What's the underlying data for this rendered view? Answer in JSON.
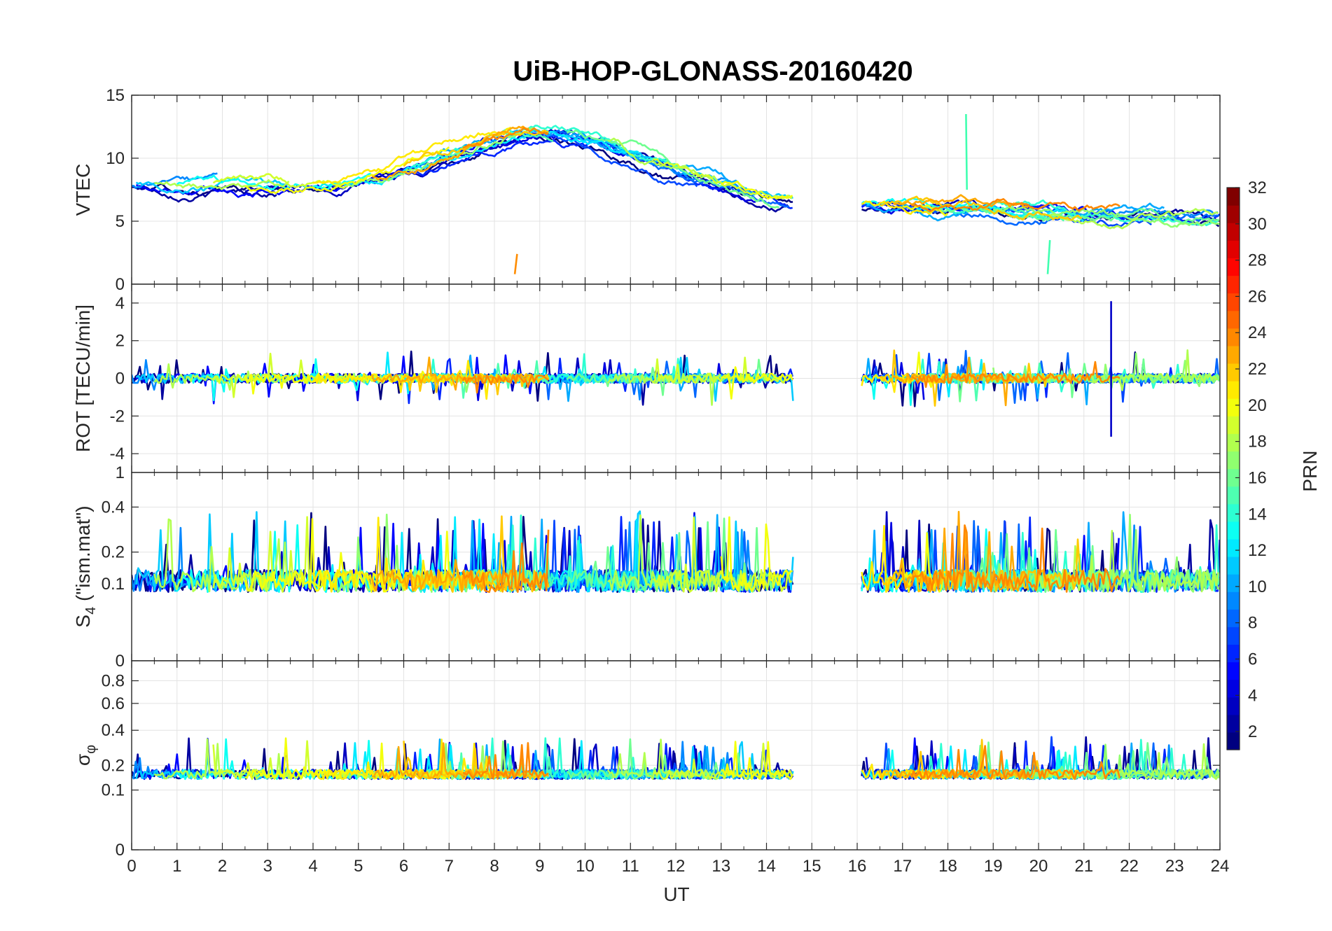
{
  "chart_data": {
    "type": "line",
    "title": "UiB-HOP-GLONASS-20160420",
    "xlabel": "UT",
    "xlim": [
      0,
      24
    ],
    "x_ticks": [
      "0",
      "1",
      "2",
      "3",
      "4",
      "5",
      "6",
      "7",
      "8",
      "9",
      "10",
      "11",
      "12",
      "13",
      "14",
      "15",
      "16",
      "17",
      "18",
      "19",
      "20",
      "21",
      "22",
      "23",
      "24"
    ],
    "grid": true,
    "data_gap": [
      14.6,
      16.1
    ],
    "panels": [
      {
        "id": "vtec",
        "ylabel": "VTEC",
        "ylim": [
          0,
          15
        ],
        "y_ticks": [
          0,
          5,
          10,
          15
        ],
        "y_tick_labels": [
          "0",
          "5",
          "10",
          "15"
        ],
        "base": 7.5,
        "base_end": 4.8,
        "peak_hour": 9.3,
        "peak": 12.5,
        "noise": 0.35,
        "jitter": 0.8,
        "annotations": [
          {
            "note": "short isolated segment near 8.5 UT",
            "x": [
              8.45,
              8.5
            ],
            "y": [
              0.8,
              2.4
            ]
          },
          {
            "note": "spike near 18.4 UT",
            "x": [
              18.4,
              18.42
            ],
            "y": [
              13.5,
              7.5
            ]
          },
          {
            "note": "drop near 20.2 UT",
            "x": [
              20.2,
              20.25
            ],
            "y": [
              0.8,
              3.5
            ]
          }
        ]
      },
      {
        "id": "rot",
        "ylabel": "ROT [TECU/min]",
        "ylim": [
          -5,
          5
        ],
        "y_ticks": [
          -4,
          -2,
          0,
          2,
          4
        ],
        "y_tick_labels": [
          "-4",
          "-2",
          "0",
          "2",
          "4"
        ],
        "base": 0.0,
        "noise": 0.25,
        "spike_amp": 1.4,
        "annotations": [
          {
            "note": "spike near 21.6 UT",
            "x": [
              21.6,
              21.6
            ],
            "y": [
              4.1,
              -3.1
            ]
          }
        ]
      },
      {
        "id": "s4",
        "ylabel": "S4 (\"ism.mat\")",
        "ylabel_main": "S",
        "ylabel_sub": "4",
        "ylabel_suffix": " (\"ism.mat\")",
        "ylim": [
          0,
          0.6
        ],
        "scale": "sqrt",
        "y_ticks": [
          0,
          0.1,
          0.2,
          0.4
        ],
        "y_tick_labels": [
          "0",
          "0.1",
          "0.2",
          "0.4"
        ],
        "top_stub_label": "1",
        "base": 0.08,
        "noise": 0.06,
        "spike_amp": 0.25
      },
      {
        "id": "sigma_phi",
        "ylabel": "σφ",
        "ylabel_main": "σ",
        "ylabel_sub": "φ",
        "ylim": [
          0,
          1
        ],
        "scale": "sqrt",
        "y_ticks": [
          0,
          0.1,
          0.2,
          0.4,
          0.6,
          0.8
        ],
        "y_tick_labels": [
          "0",
          "0.1",
          "0.2",
          "0.4",
          "0.6",
          "0.8"
        ],
        "base": 0.14,
        "noise": 0.04,
        "spike_amp": 0.18
      }
    ],
    "series": [
      {
        "prn": 1,
        "segments": [
          [
            0,
            14.6
          ],
          [
            16.1,
            24
          ]
        ]
      },
      {
        "prn": 2,
        "segments": [
          [
            0,
            3.2
          ],
          [
            10.6,
            14.5
          ],
          [
            21.0,
            24
          ]
        ]
      },
      {
        "prn": 3,
        "segments": [
          [
            2.5,
            10.8
          ],
          [
            16.2,
            19.5
          ]
        ]
      },
      {
        "prn": 4,
        "segments": [
          [
            4.4,
            13.8
          ],
          [
            16.3,
            17.5
          ]
        ]
      },
      {
        "prn": 5,
        "segments": [
          [
            0.1,
            9.2
          ],
          [
            16.1,
            21.8
          ]
        ]
      },
      {
        "prn": 6,
        "segments": [
          [
            5.8,
            14.6
          ],
          [
            19.0,
            24
          ]
        ]
      },
      {
        "prn": 7,
        "segments": [
          [
            8.6,
            12.5
          ],
          [
            16.1,
            22.5
          ]
        ]
      },
      {
        "prn": 8,
        "segments": [
          [
            9.1,
            14.5
          ],
          [
            17.0,
            24
          ]
        ]
      },
      {
        "prn": 9,
        "segments": [
          [
            0,
            1.9
          ],
          [
            10.8,
            14.0
          ],
          [
            21.3,
            24
          ]
        ]
      },
      {
        "prn": 10,
        "segments": [
          [
            6.3,
            13.5
          ],
          [
            16.2,
            22.8
          ]
        ]
      },
      {
        "prn": 11,
        "segments": [
          [
            0.1,
            3.5
          ],
          [
            9.5,
            14.6
          ]
        ]
      },
      {
        "prn": 12,
        "segments": [
          [
            3.8,
            11.2
          ],
          [
            17.3,
            21.0
          ]
        ]
      },
      {
        "prn": 13,
        "segments": [
          [
            1.0,
            5.3
          ],
          [
            16.1,
            20.6
          ]
        ]
      },
      {
        "prn": 14,
        "segments": [
          [
            6.2,
            12.2
          ],
          [
            17.4,
            24
          ]
        ]
      },
      {
        "prn": 15,
        "segments": [
          [
            7.0,
            9.3
          ],
          [
            18.4,
            20.6
          ]
        ]
      },
      {
        "prn": 16,
        "segments": [
          [
            9.6,
            14.3
          ],
          [
            17.5,
            24
          ]
        ]
      },
      {
        "prn": 17,
        "segments": [
          [
            4.5,
            9.0
          ],
          [
            19.0,
            24
          ]
        ]
      },
      {
        "prn": 18,
        "segments": [
          [
            0.5,
            3.5
          ],
          [
            10.5,
            13.0
          ],
          [
            20.0,
            24
          ]
        ]
      },
      {
        "prn": 19,
        "segments": [
          [
            1.8,
            4.8
          ],
          [
            11.5,
            14.6
          ]
        ]
      },
      {
        "prn": 20,
        "segments": [
          [
            2.5,
            7.0
          ],
          [
            13.0,
            14.6
          ],
          [
            17.0,
            18.0
          ]
        ]
      },
      {
        "prn": 21,
        "segments": [
          [
            4.0,
            8.4
          ],
          [
            16.1,
            17.8
          ]
        ]
      },
      {
        "prn": 22,
        "segments": [
          [
            6.0,
            9.2
          ],
          [
            16.5,
            21.0
          ]
        ]
      },
      {
        "prn": 23,
        "segments": [
          [
            5.3,
            8.8
          ],
          [
            16.8,
            19.8
          ]
        ]
      },
      {
        "prn": 24,
        "segments": [
          [
            7.3,
            9.2
          ],
          [
            17.2,
            21.8
          ]
        ]
      }
    ],
    "colorbar": {
      "label": "PRN",
      "ticks": [
        "2",
        "4",
        "6",
        "8",
        "10",
        "12",
        "14",
        "16",
        "18",
        "20",
        "22",
        "24",
        "26",
        "28",
        "30",
        "32"
      ],
      "range": [
        1,
        32
      ],
      "steps": 32,
      "colormap": "jet"
    }
  }
}
